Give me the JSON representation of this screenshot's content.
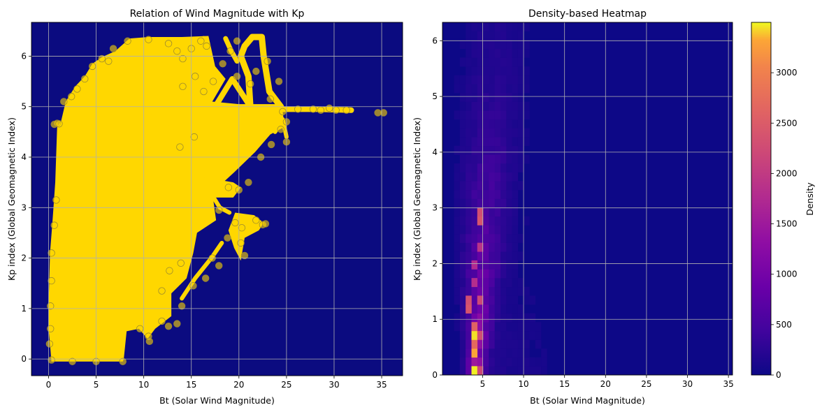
{
  "chart_data": [
    {
      "type": "scatter",
      "title": "Relation of Wind Magnitude with Kp",
      "xlabel": "Bt (Solar Wind Magnitude)",
      "ylabel": "Kp index (Global Geomagnetic Index)",
      "xlim": [
        -1.8,
        37.2
      ],
      "ylim": [
        -0.33,
        6.67
      ],
      "xticks": [
        0,
        5,
        10,
        15,
        20,
        25,
        30,
        35
      ],
      "yticks": [
        0,
        1,
        2,
        3,
        4,
        5,
        6
      ],
      "grid": true,
      "background_color": "#0b0b80",
      "point_color": "#ffd700",
      "point_edge_color": "#9c8a2e",
      "series": [
        {
          "points": [
            [
              0.2,
              1.05
            ],
            [
              0.3,
              2.1
            ],
            [
              0.6,
              2.65
            ],
            [
              0.8,
              3.15
            ],
            [
              0.6,
              4.65
            ],
            [
              0.9,
              4.67
            ],
            [
              1.1,
              4.66
            ],
            [
              1.6,
              5.1
            ],
            [
              2.4,
              5.2
            ],
            [
              3.0,
              5.35
            ],
            [
              3.8,
              5.55
            ],
            [
              4.6,
              5.8
            ],
            [
              5.6,
              5.95
            ],
            [
              6.3,
              5.9
            ],
            [
              6.8,
              6.15
            ],
            [
              8.3,
              6.3
            ],
            [
              10.5,
              6.33
            ],
            [
              12.6,
              6.25
            ],
            [
              13.5,
              6.1
            ],
            [
              14.1,
              5.95
            ],
            [
              15.0,
              6.15
            ],
            [
              16.0,
              6.3
            ],
            [
              16.6,
              6.2
            ],
            [
              17.3,
              5.5
            ],
            [
              18.3,
              5.85
            ],
            [
              19.1,
              6.1
            ],
            [
              19.8,
              6.3
            ],
            [
              16.3,
              5.3
            ],
            [
              14.1,
              5.4
            ],
            [
              15.4,
              5.6
            ],
            [
              24.2,
              5.5
            ],
            [
              24.6,
              4.9
            ],
            [
              25.0,
              4.7
            ],
            [
              25.0,
              4.3
            ],
            [
              24.4,
              4.55
            ],
            [
              26.2,
              4.95
            ],
            [
              27.8,
              4.95
            ],
            [
              28.6,
              4.93
            ],
            [
              29.5,
              4.97
            ],
            [
              30.2,
              4.93
            ],
            [
              31.3,
              4.93
            ],
            [
              34.6,
              4.88
            ],
            [
              35.2,
              4.88
            ],
            [
              22.3,
              4.0
            ],
            [
              21.0,
              3.5
            ],
            [
              20.0,
              3.35
            ],
            [
              18.9,
              3.4
            ],
            [
              21.8,
              2.75
            ],
            [
              22.5,
              2.66
            ],
            [
              20.3,
              2.6
            ],
            [
              20.2,
              2.3
            ],
            [
              20.6,
              2.05
            ],
            [
              18.8,
              2.4
            ],
            [
              17.2,
              2.0
            ],
            [
              17.9,
              1.85
            ],
            [
              16.5,
              1.6
            ],
            [
              15.2,
              1.45
            ],
            [
              14.0,
              1.05
            ],
            [
              13.5,
              0.7
            ],
            [
              12.6,
              0.65
            ],
            [
              11.9,
              0.75
            ],
            [
              10.5,
              0.45
            ],
            [
              10.6,
              0.35
            ],
            [
              9.6,
              0.6
            ],
            [
              7.8,
              -0.05
            ],
            [
              5.0,
              -0.05
            ],
            [
              2.5,
              -0.05
            ],
            [
              0.3,
              -0.02
            ],
            [
              0.1,
              0.3
            ],
            [
              0.2,
              0.6
            ],
            [
              0.3,
              1.55
            ],
            [
              12.7,
              1.75
            ],
            [
              13.9,
              1.9
            ],
            [
              11.9,
              1.35
            ],
            [
              17.9,
              2.95
            ],
            [
              19.6,
              2.7
            ],
            [
              22.8,
              2.68
            ],
            [
              23.4,
              4.25
            ],
            [
              21.2,
              5.45
            ],
            [
              19.8,
              5.6
            ],
            [
              21.8,
              5.7
            ],
            [
              23.0,
              5.9
            ],
            [
              23.3,
              5.15
            ],
            [
              15.3,
              4.4
            ],
            [
              13.8,
              4.2
            ]
          ]
        }
      ]
    },
    {
      "type": "heatmap",
      "title": "Density-based Heatmap",
      "xlabel": "Bt (Solar Wind Magnitude)",
      "ylabel": "Kp index (Global Geomagnetic Index)",
      "xlim": [
        0.1,
        35.5
      ],
      "ylim": [
        0,
        6.33
      ],
      "xticks": [
        5,
        10,
        15,
        20,
        25,
        30,
        35
      ],
      "yticks": [
        0,
        1,
        2,
        3,
        4,
        5,
        6
      ],
      "grid": true,
      "colormap": "plasma",
      "colorbar_label": "Density",
      "colorbar_range": [
        0,
        3500
      ],
      "colorbar_ticks": [
        0,
        500,
        1000,
        1500,
        2000,
        2500,
        3000
      ],
      "hotspots": [
        {
          "x": 3.8,
          "y": 0.1,
          "value": 3480
        },
        {
          "x": 3.8,
          "y": 0.32,
          "value": 3300
        },
        {
          "x": 3.8,
          "y": 0.52,
          "value": 2700
        },
        {
          "x": 3.8,
          "y": 0.72,
          "value": 3450
        },
        {
          "x": 3.8,
          "y": 0.92,
          "value": 2600
        },
        {
          "x": 3.4,
          "y": 1.12,
          "value": 2400
        },
        {
          "x": 3.4,
          "y": 1.32,
          "value": 2300
        },
        {
          "x": 4.5,
          "y": 1.3,
          "value": 2200
        },
        {
          "x": 4.5,
          "y": 0.1,
          "value": 2200
        },
        {
          "x": 4.5,
          "y": 0.72,
          "value": 2300
        },
        {
          "x": 4.5,
          "y": 2.75,
          "value": 2400
        },
        {
          "x": 4.5,
          "y": 3.0,
          "value": 2300
        },
        {
          "x": 4.5,
          "y": 2.35,
          "value": 1900
        },
        {
          "x": 3.8,
          "y": 1.7,
          "value": 1800
        },
        {
          "x": 3.8,
          "y": 2.0,
          "value": 1750
        }
      ]
    }
  ]
}
